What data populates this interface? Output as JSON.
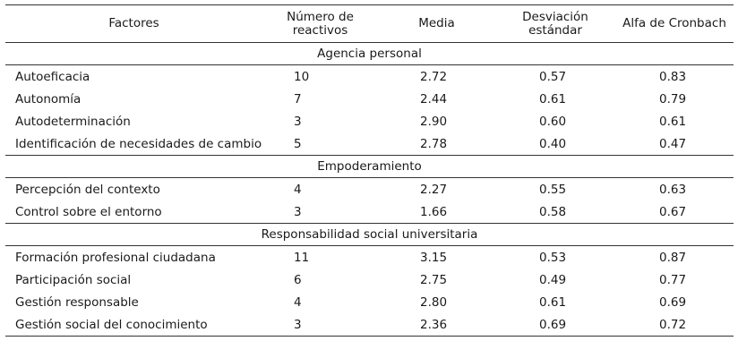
{
  "table": {
    "headers": [
      "Factores",
      "Número de reactivos",
      "Media",
      "Desviación estándar",
      "Alfa de Cronbach"
    ],
    "sections": [
      {
        "title": "Agencia personal",
        "rows": [
          {
            "factor": "Autoeficacia",
            "n": "10",
            "media": "2.72",
            "de": "0.57",
            "alfa": "0.83"
          },
          {
            "factor": "Autonomía",
            "n": "7",
            "media": "2.44",
            "de": "0.61",
            "alfa": "0.79"
          },
          {
            "factor": "Autodeterminación",
            "n": "3",
            "media": "2.90",
            "de": "0.60",
            "alfa": "0.61"
          },
          {
            "factor": "Identificación de necesidades de cambio",
            "n": "5",
            "media": "2.78",
            "de": "0.40",
            "alfa": "0.47"
          }
        ]
      },
      {
        "title": "Empoderamiento",
        "rows": [
          {
            "factor": "Percepción del contexto",
            "n": "4",
            "media": "2.27",
            "de": "0.55",
            "alfa": "0.63"
          },
          {
            "factor": "Control sobre el entorno",
            "n": "3",
            "media": "1.66",
            "de": "0.58",
            "alfa": "0.67"
          }
        ]
      },
      {
        "title": "Responsabilidad social universitaria",
        "rows": [
          {
            "factor": "Formación profesional ciudadana",
            "n": "11",
            "media": "3.15",
            "de": "0.53",
            "alfa": "0.87"
          },
          {
            "factor": "Participación social",
            "n": "6",
            "media": "2.75",
            "de": "0.49",
            "alfa": "0.77"
          },
          {
            "factor": "Gestión responsable",
            "n": "4",
            "media": "2.80",
            "de": "0.61",
            "alfa": "0.69"
          },
          {
            "factor": "Gestión social del conocimiento",
            "n": "3",
            "media": "2.36",
            "de": "0.69",
            "alfa": "0.72"
          }
        ]
      }
    ]
  }
}
